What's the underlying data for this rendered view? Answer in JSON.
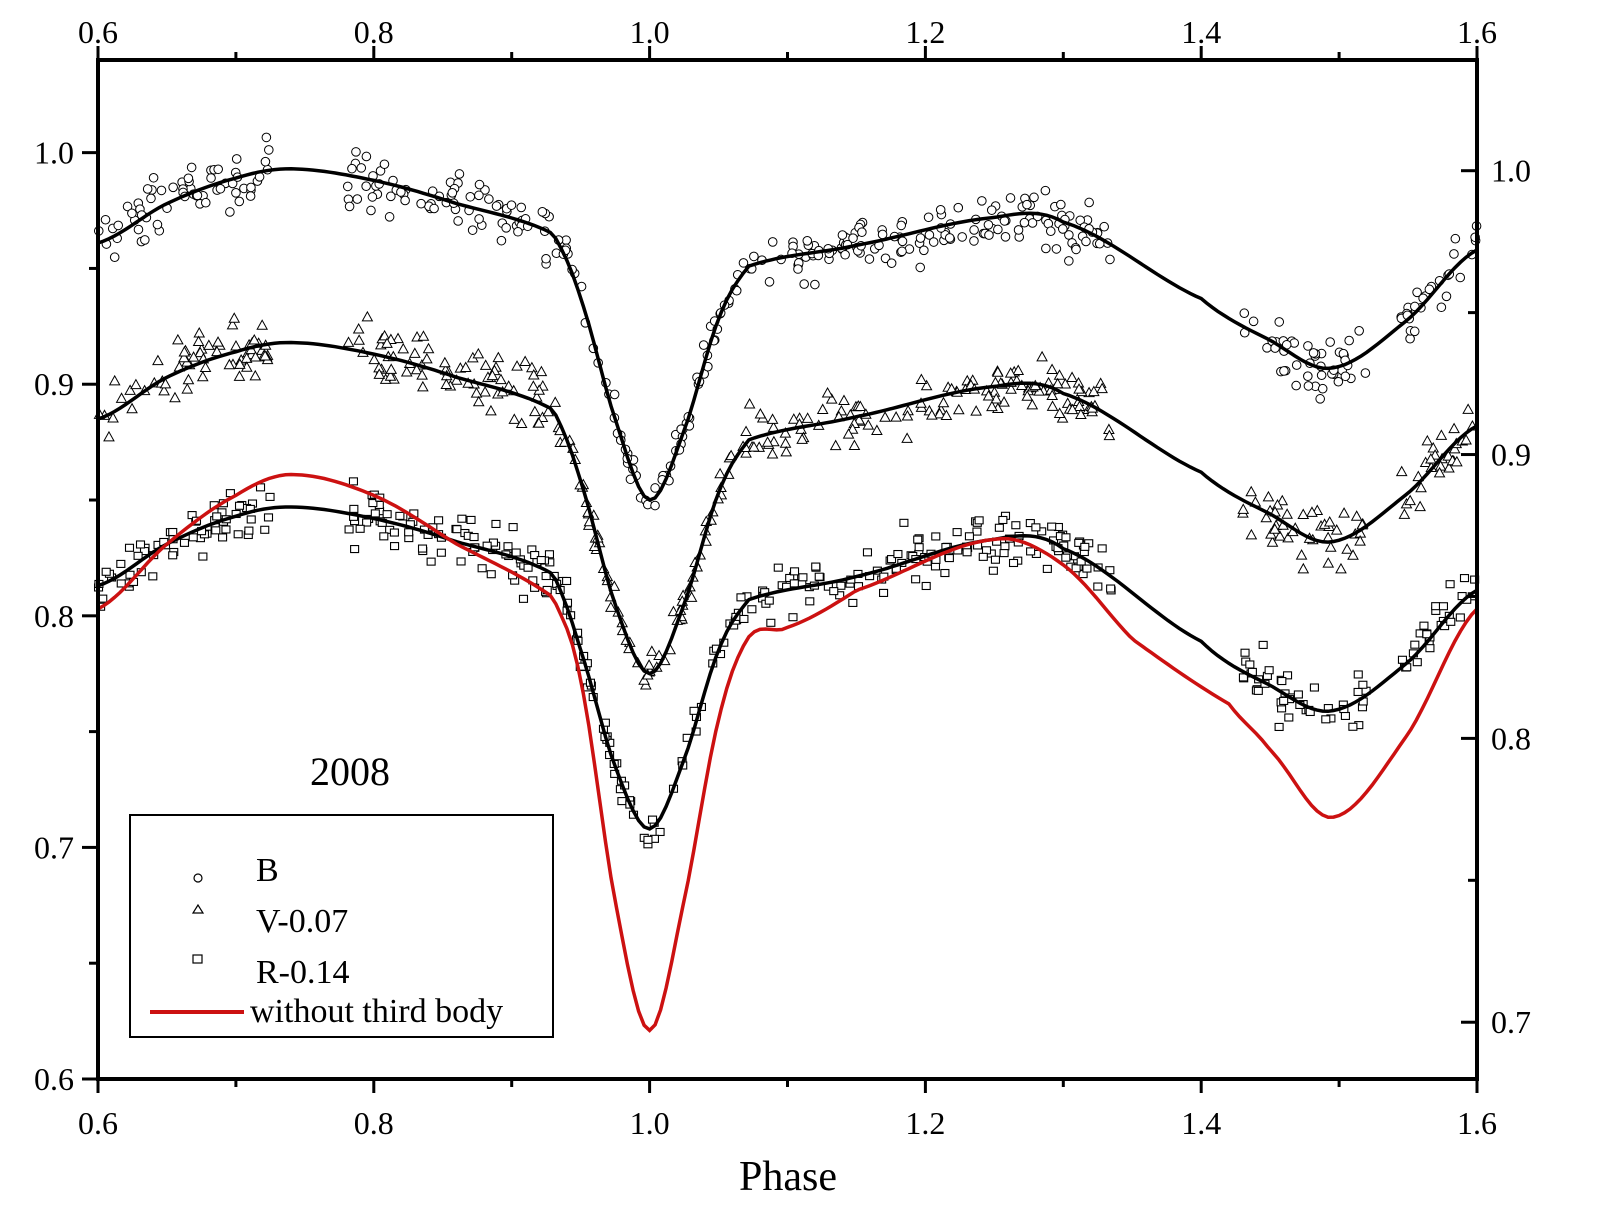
{
  "chart_data": {
    "type": "scatter",
    "title": "",
    "annotation": "2008",
    "xlabel": "Phase",
    "ylabel": "",
    "xlim": [
      0.6,
      1.6
    ],
    "ylim_left": [
      0.6,
      1.04
    ],
    "ylim_right": [
      0.68,
      1.039
    ],
    "x_ticks": [
      0.6,
      0.8,
      1.0,
      1.2,
      1.4,
      1.6
    ],
    "x_tick_labels": [
      "0.6",
      "0.8",
      "1.0",
      "1.2",
      "1.4",
      "1.6"
    ],
    "y_ticks_left": [
      0.6,
      0.7,
      0.8,
      0.9,
      1.0
    ],
    "y_tick_labels_left": [
      "0.6",
      "0.7",
      "0.8",
      "0.9",
      "1.0"
    ],
    "y_ticks_right": [
      0.7,
      0.8,
      0.9,
      1.0
    ],
    "y_tick_labels_right": [
      "0.7",
      "0.8",
      "0.9",
      "1.0"
    ],
    "grid": false,
    "legend_position": "bottom-left",
    "legend": [
      {
        "label": "B",
        "marker": "circle"
      },
      {
        "label": "V-0.07",
        "marker": "triangle"
      },
      {
        "label": "R-0.14",
        "marker": "square"
      },
      {
        "label": "without third body",
        "marker": "line",
        "color": "#cc1111"
      }
    ],
    "observations": {
      "phase_coverage": [
        [
          0.6,
          0.725
        ],
        [
          0.78,
          1.335
        ],
        [
          1.43,
          1.52
        ],
        [
          1.545,
          1.6
        ]
      ],
      "scatter": 0.012
    },
    "series": [
      {
        "name": "B",
        "marker": "circle",
        "fit_color": "#000000",
        "x": [
          0.6,
          0.65,
          0.7,
          0.74,
          0.8,
          0.86,
          0.93,
          0.95,
          0.975,
          1.0,
          1.025,
          1.05,
          1.072,
          1.15,
          1.25,
          1.3,
          1.4,
          1.45,
          1.495,
          1.55,
          1.6
        ],
        "y": [
          0.961,
          0.978,
          0.989,
          0.993,
          0.988,
          0.978,
          0.965,
          0.937,
          0.885,
          0.85,
          0.88,
          0.928,
          0.951,
          0.96,
          0.972,
          0.97,
          0.937,
          0.919,
          0.907,
          0.928,
          0.958
        ]
      },
      {
        "name": "V-0.07",
        "marker": "triangle",
        "fit_color": "#000000",
        "x": [
          0.6,
          0.65,
          0.7,
          0.74,
          0.8,
          0.86,
          0.93,
          0.95,
          0.975,
          1.0,
          1.025,
          1.05,
          1.072,
          1.15,
          1.25,
          1.3,
          1.4,
          1.45,
          1.495,
          1.55,
          1.6
        ],
        "y": [
          0.885,
          0.903,
          0.914,
          0.918,
          0.913,
          0.903,
          0.889,
          0.858,
          0.805,
          0.775,
          0.805,
          0.853,
          0.876,
          0.886,
          0.899,
          0.896,
          0.862,
          0.844,
          0.832,
          0.853,
          0.882
        ]
      },
      {
        "name": "R-0.14",
        "marker": "square",
        "fit_color": "#000000",
        "x": [
          0.6,
          0.65,
          0.7,
          0.74,
          0.8,
          0.86,
          0.93,
          0.95,
          0.975,
          1.0,
          1.025,
          1.05,
          1.072,
          1.15,
          1.25,
          1.3,
          1.4,
          1.45,
          1.495,
          1.55,
          1.6
        ],
        "y": [
          0.813,
          0.831,
          0.843,
          0.847,
          0.842,
          0.832,
          0.818,
          0.785,
          0.735,
          0.708,
          0.738,
          0.785,
          0.807,
          0.817,
          0.833,
          0.829,
          0.789,
          0.77,
          0.759,
          0.78,
          0.811
        ]
      },
      {
        "name": "without third body",
        "marker": "line",
        "color": "#cc1111",
        "x": [
          0.6,
          0.65,
          0.7,
          0.74,
          0.8,
          0.86,
          0.93,
          0.95,
          0.975,
          1.0,
          1.025,
          1.05,
          1.072,
          1.1,
          1.15,
          1.25,
          1.3,
          1.35,
          1.42,
          1.45,
          1.495,
          1.55,
          1.6
        ],
        "y": [
          0.803,
          0.831,
          0.852,
          0.861,
          0.852,
          0.831,
          0.808,
          0.772,
          0.677,
          0.621,
          0.677,
          0.755,
          0.791,
          0.795,
          0.811,
          0.833,
          0.822,
          0.79,
          0.762,
          0.742,
          0.713,
          0.749,
          0.803
        ]
      }
    ]
  }
}
